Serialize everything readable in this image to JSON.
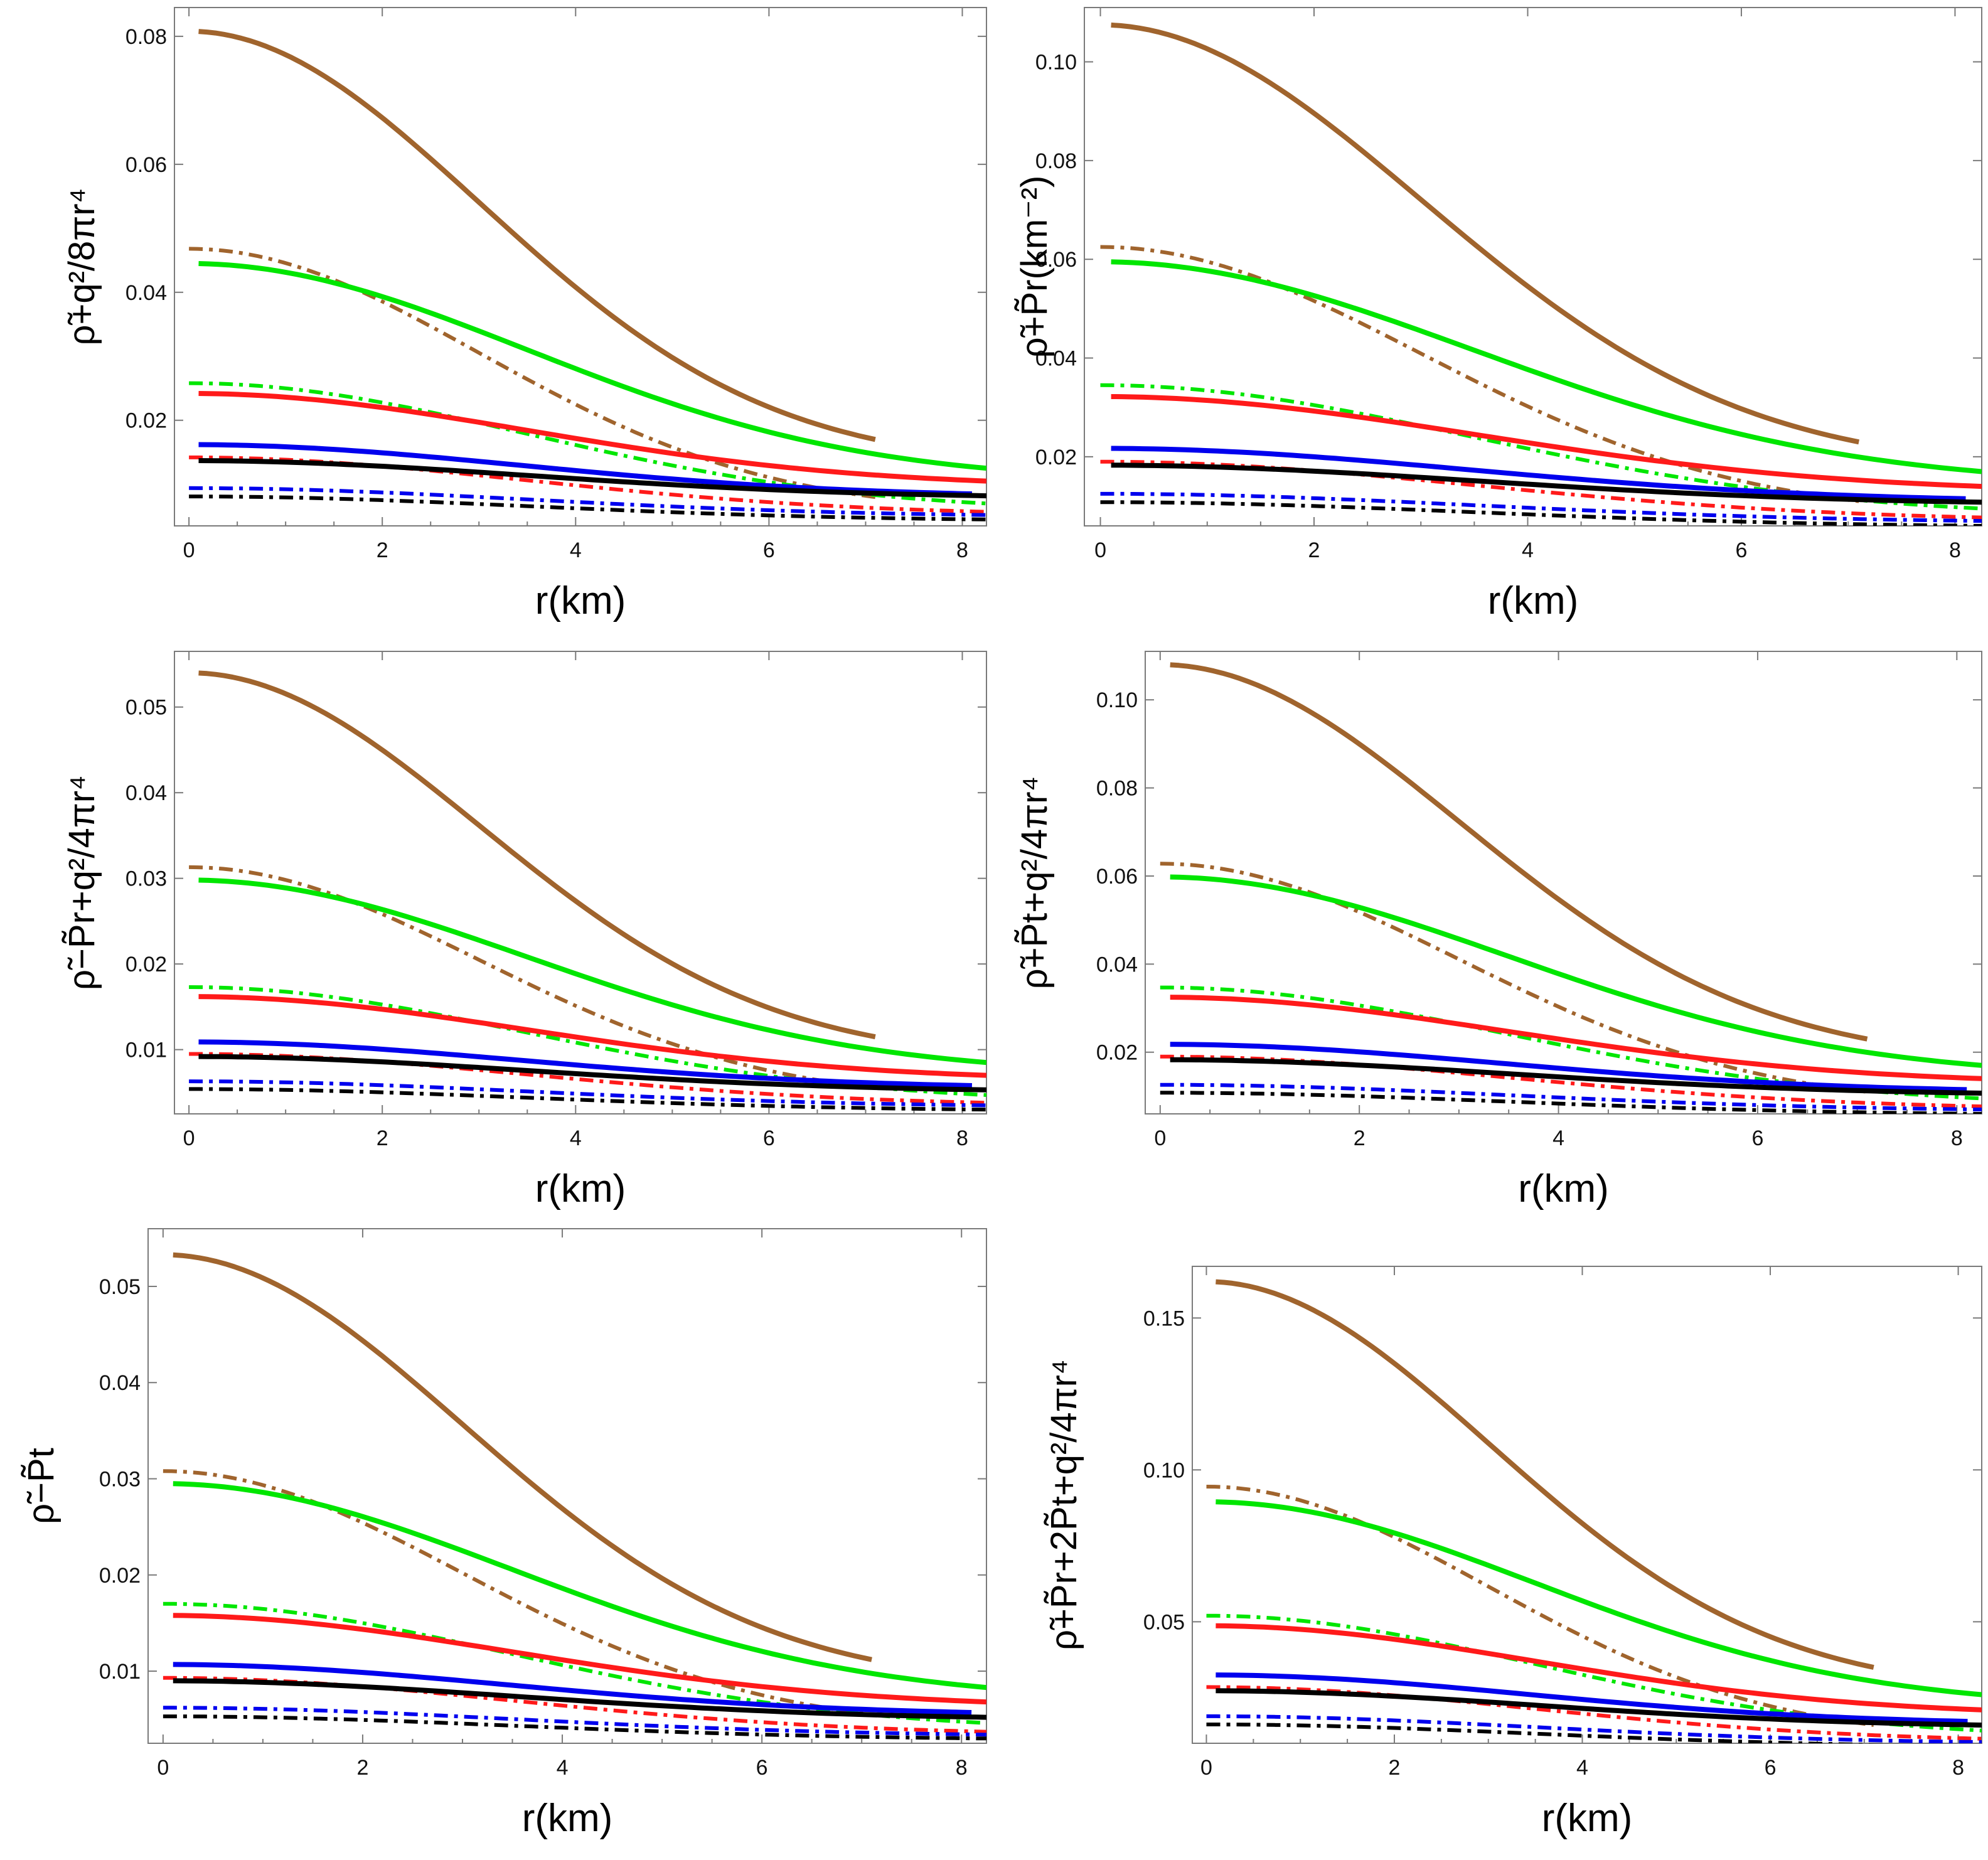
{
  "colors": {
    "brown": "#a0642d",
    "green": "#00e600",
    "red": "#ff1a1a",
    "blue": "#0000ee",
    "black": "#000000"
  },
  "chart_data": [
    {
      "type": "line",
      "ylabel": "ρ̃+q²/8πr⁴",
      "xlabel": "r(km)",
      "xlim": [
        -0.15,
        8.25
      ],
      "ylim": [
        0.0035,
        0.0845
      ],
      "xticks": [
        "0",
        "2",
        "4",
        "6",
        "8"
      ],
      "yticks": [
        "0.02",
        "0.04",
        "0.06",
        "0.08"
      ],
      "series": [
        {
          "name": "brown solid",
          "color": "brown",
          "dash": "solid",
          "r_end": 7.1,
          "y0": 0.0808,
          "y_end": 0.017,
          "k": 0.055
        },
        {
          "name": "green solid",
          "color": "green",
          "dash": "solid",
          "r_end": 8.25,
          "y0": 0.0445,
          "y_end": 0.0125,
          "k": 0.032
        },
        {
          "name": "red solid",
          "color": "red",
          "dash": "solid",
          "r_end": 8.25,
          "y0": 0.0242,
          "y_end": 0.0105,
          "k": 0.018
        },
        {
          "name": "blue solid",
          "color": "blue",
          "dash": "solid",
          "r_end": 8.1,
          "y0": 0.0162,
          "y_end": 0.0085,
          "k": 0.013
        },
        {
          "name": "black solid",
          "color": "black",
          "dash": "solid",
          "r_end": 8.25,
          "y0": 0.0137,
          "y_end": 0.0082,
          "k": 0.01
        },
        {
          "name": "brown dot-dashed",
          "color": "brown",
          "dash": "dotdash",
          "r_end": 7.1,
          "y0": 0.0468,
          "y_end": 0.008,
          "k": 0.07
        },
        {
          "name": "green dot-dashed",
          "color": "green",
          "dash": "dotdash",
          "r_end": 8.25,
          "y0": 0.0258,
          "y_end": 0.007,
          "k": 0.045
        },
        {
          "name": "red dot-dashed",
          "color": "red",
          "dash": "dotdash",
          "r_end": 8.25,
          "y0": 0.0142,
          "y_end": 0.0057,
          "k": 0.025
        },
        {
          "name": "blue dot-dashed",
          "color": "blue",
          "dash": "dotdash",
          "r_end": 8.25,
          "y0": 0.0094,
          "y_end": 0.0052,
          "k": 0.02
        },
        {
          "name": "black dot-dashed",
          "color": "black",
          "dash": "dotdash",
          "r_end": 8.25,
          "y0": 0.0081,
          "y_end": 0.0045,
          "k": 0.02
        }
      ]
    },
    {
      "type": "line",
      "ylabel": "ρ̃+P̃r(km⁻²)",
      "xlabel": "r(km)",
      "xlim": [
        -0.15,
        8.25
      ],
      "ylim": [
        0.006,
        0.111
      ],
      "xticks": [
        "0",
        "2",
        "4",
        "6",
        "8"
      ],
      "yticks": [
        "0.02",
        "0.04",
        "0.06",
        "0.08",
        "0.10"
      ],
      "series": [
        {
          "name": "brown solid",
          "color": "brown",
          "dash": "solid",
          "r_end": 7.1,
          "y0": 0.1075,
          "y_end": 0.023,
          "k": 0.055
        },
        {
          "name": "green solid",
          "color": "green",
          "dash": "solid",
          "r_end": 8.25,
          "y0": 0.0595,
          "y_end": 0.017,
          "k": 0.032
        },
        {
          "name": "red solid",
          "color": "red",
          "dash": "solid",
          "r_end": 8.25,
          "y0": 0.0322,
          "y_end": 0.014,
          "k": 0.018
        },
        {
          "name": "blue solid",
          "color": "blue",
          "dash": "solid",
          "r_end": 8.1,
          "y0": 0.0217,
          "y_end": 0.0115,
          "k": 0.013
        },
        {
          "name": "black solid",
          "color": "black",
          "dash": "solid",
          "r_end": 8.25,
          "y0": 0.0183,
          "y_end": 0.0108,
          "k": 0.01
        },
        {
          "name": "brown dot-dashed",
          "color": "brown",
          "dash": "dotdash",
          "r_end": 7.1,
          "y0": 0.0625,
          "y_end": 0.011,
          "k": 0.07
        },
        {
          "name": "green dot-dashed",
          "color": "green",
          "dash": "dotdash",
          "r_end": 8.25,
          "y0": 0.0345,
          "y_end": 0.0095,
          "k": 0.045
        },
        {
          "name": "red dot-dashed",
          "color": "red",
          "dash": "dotdash",
          "r_end": 8.25,
          "y0": 0.019,
          "y_end": 0.0077,
          "k": 0.025
        },
        {
          "name": "blue dot-dashed",
          "color": "blue",
          "dash": "dotdash",
          "r_end": 8.25,
          "y0": 0.0125,
          "y_end": 0.007,
          "k": 0.02
        },
        {
          "name": "black dot-dashed",
          "color": "black",
          "dash": "dotdash",
          "r_end": 8.25,
          "y0": 0.0108,
          "y_end": 0.006,
          "k": 0.02
        }
      ]
    },
    {
      "type": "line",
      "ylabel": "ρ̃−P̃r+q²/4πr⁴",
      "xlabel": "r(km)",
      "xlim": [
        -0.15,
        8.25
      ],
      "ylim": [
        0.0025,
        0.0565
      ],
      "xticks": [
        "0",
        "2",
        "4",
        "6",
        "8"
      ],
      "yticks": [
        "0.01",
        "0.02",
        "0.03",
        "0.04",
        "0.05"
      ],
      "series": [
        {
          "name": "brown solid",
          "color": "brown",
          "dash": "solid",
          "r_end": 7.1,
          "y0": 0.054,
          "y_end": 0.0115,
          "k": 0.055
        },
        {
          "name": "green solid",
          "color": "green",
          "dash": "solid",
          "r_end": 8.25,
          "y0": 0.0298,
          "y_end": 0.0085,
          "k": 0.032
        },
        {
          "name": "red solid",
          "color": "red",
          "dash": "solid",
          "r_end": 8.25,
          "y0": 0.0162,
          "y_end": 0.007,
          "k": 0.018
        },
        {
          "name": "blue solid",
          "color": "blue",
          "dash": "solid",
          "r_end": 8.1,
          "y0": 0.0109,
          "y_end": 0.0058,
          "k": 0.013
        },
        {
          "name": "black solid",
          "color": "black",
          "dash": "solid",
          "r_end": 8.25,
          "y0": 0.0092,
          "y_end": 0.0053,
          "k": 0.01
        },
        {
          "name": "brown dot-dashed",
          "color": "brown",
          "dash": "dotdash",
          "r_end": 7.1,
          "y0": 0.0313,
          "y_end": 0.0055,
          "k": 0.07
        },
        {
          "name": "green dot-dashed",
          "color": "green",
          "dash": "dotdash",
          "r_end": 8.25,
          "y0": 0.0173,
          "y_end": 0.0047,
          "k": 0.045
        },
        {
          "name": "red dot-dashed",
          "color": "red",
          "dash": "dotdash",
          "r_end": 8.25,
          "y0": 0.0095,
          "y_end": 0.0038,
          "k": 0.025
        },
        {
          "name": "blue dot-dashed",
          "color": "blue",
          "dash": "dotdash",
          "r_end": 8.25,
          "y0": 0.0063,
          "y_end": 0.0035,
          "k": 0.02
        },
        {
          "name": "black dot-dashed",
          "color": "black",
          "dash": "dotdash",
          "r_end": 8.25,
          "y0": 0.0054,
          "y_end": 0.003,
          "k": 0.02
        }
      ]
    },
    {
      "type": "line",
      "ylabel": "ρ̃+P̃t+q²/4πr⁴",
      "xlabel": "r(km)",
      "xlim": [
        -0.15,
        8.25
      ],
      "ylim": [
        0.006,
        0.111
      ],
      "xticks": [
        "0",
        "2",
        "4",
        "6",
        "8"
      ],
      "yticks": [
        "0.02",
        "0.04",
        "0.06",
        "0.08",
        "0.10"
      ],
      "series": [
        {
          "name": "brown solid",
          "color": "brown",
          "dash": "solid",
          "r_end": 7.1,
          "y0": 0.108,
          "y_end": 0.023,
          "k": 0.055
        },
        {
          "name": "green solid",
          "color": "green",
          "dash": "solid",
          "r_end": 8.25,
          "y0": 0.0598,
          "y_end": 0.017,
          "k": 0.032
        },
        {
          "name": "red solid",
          "color": "red",
          "dash": "solid",
          "r_end": 8.25,
          "y0": 0.0325,
          "y_end": 0.014,
          "k": 0.018
        },
        {
          "name": "blue solid",
          "color": "blue",
          "dash": "solid",
          "r_end": 8.1,
          "y0": 0.0218,
          "y_end": 0.0115,
          "k": 0.013
        },
        {
          "name": "black solid",
          "color": "black",
          "dash": "solid",
          "r_end": 8.25,
          "y0": 0.0183,
          "y_end": 0.0107,
          "k": 0.01
        },
        {
          "name": "brown dot-dashed",
          "color": "brown",
          "dash": "dotdash",
          "r_end": 7.1,
          "y0": 0.0628,
          "y_end": 0.011,
          "k": 0.07
        },
        {
          "name": "green dot-dashed",
          "color": "green",
          "dash": "dotdash",
          "r_end": 8.25,
          "y0": 0.0347,
          "y_end": 0.0095,
          "k": 0.045
        },
        {
          "name": "red dot-dashed",
          "color": "red",
          "dash": "dotdash",
          "r_end": 8.25,
          "y0": 0.019,
          "y_end": 0.0077,
          "k": 0.025
        },
        {
          "name": "blue dot-dashed",
          "color": "blue",
          "dash": "dotdash",
          "r_end": 8.25,
          "y0": 0.0126,
          "y_end": 0.007,
          "k": 0.02
        },
        {
          "name": "black dot-dashed",
          "color": "black",
          "dash": "dotdash",
          "r_end": 8.25,
          "y0": 0.0108,
          "y_end": 0.006,
          "k": 0.02
        }
      ]
    },
    {
      "type": "line",
      "ylabel": "ρ̃−P̃t",
      "xlabel": "r(km)",
      "xlim": [
        -0.15,
        8.25
      ],
      "ylim": [
        0.0025,
        0.056
      ],
      "xticks": [
        "0",
        "2",
        "4",
        "6",
        "8"
      ],
      "yticks": [
        "0.01",
        "0.02",
        "0.03",
        "0.04",
        "0.05"
      ],
      "series": [
        {
          "name": "brown solid",
          "color": "brown",
          "dash": "solid",
          "r_end": 7.1,
          "y0": 0.0533,
          "y_end": 0.0112,
          "k": 0.055
        },
        {
          "name": "green solid",
          "color": "green",
          "dash": "solid",
          "r_end": 8.25,
          "y0": 0.0295,
          "y_end": 0.0083,
          "k": 0.032
        },
        {
          "name": "red solid",
          "color": "red",
          "dash": "solid",
          "r_end": 8.25,
          "y0": 0.0158,
          "y_end": 0.0068,
          "k": 0.018
        },
        {
          "name": "blue solid",
          "color": "blue",
          "dash": "solid",
          "r_end": 8.1,
          "y0": 0.0107,
          "y_end": 0.0057,
          "k": 0.013
        },
        {
          "name": "black solid",
          "color": "black",
          "dash": "solid",
          "r_end": 8.25,
          "y0": 0.009,
          "y_end": 0.0052,
          "k": 0.01
        },
        {
          "name": "brown dot-dashed",
          "color": "brown",
          "dash": "dotdash",
          "r_end": 7.1,
          "y0": 0.0308,
          "y_end": 0.0055,
          "k": 0.07
        },
        {
          "name": "green dot-dashed",
          "color": "green",
          "dash": "dotdash",
          "r_end": 8.25,
          "y0": 0.017,
          "y_end": 0.0046,
          "k": 0.045
        },
        {
          "name": "red dot-dashed",
          "color": "red",
          "dash": "dotdash",
          "r_end": 8.25,
          "y0": 0.0093,
          "y_end": 0.0037,
          "k": 0.025
        },
        {
          "name": "blue dot-dashed",
          "color": "blue",
          "dash": "dotdash",
          "r_end": 8.25,
          "y0": 0.0062,
          "y_end": 0.0034,
          "k": 0.02
        },
        {
          "name": "black dot-dashed",
          "color": "black",
          "dash": "dotdash",
          "r_end": 8.25,
          "y0": 0.0053,
          "y_end": 0.003,
          "k": 0.02
        }
      ]
    },
    {
      "type": "line",
      "ylabel": "ρ̃+P̃r+2P̃t+q²/4πr⁴",
      "xlabel": "r(km)",
      "xlim": [
        -0.15,
        8.25
      ],
      "ylim": [
        0.01,
        0.167
      ],
      "xticks": [
        "0",
        "2",
        "4",
        "6",
        "8"
      ],
      "yticks": [
        "0.05",
        "0.10",
        "0.15"
      ],
      "series": [
        {
          "name": "brown solid",
          "color": "brown",
          "dash": "solid",
          "r_end": 7.1,
          "y0": 0.162,
          "y_end": 0.035,
          "k": 0.055
        },
        {
          "name": "green solid",
          "color": "green",
          "dash": "solid",
          "r_end": 8.25,
          "y0": 0.0895,
          "y_end": 0.026,
          "k": 0.032
        },
        {
          "name": "red solid",
          "color": "red",
          "dash": "solid",
          "r_end": 8.25,
          "y0": 0.0487,
          "y_end": 0.021,
          "k": 0.018
        },
        {
          "name": "blue solid",
          "color": "blue",
          "dash": "solid",
          "r_end": 8.1,
          "y0": 0.0325,
          "y_end": 0.0172,
          "k": 0.013
        },
        {
          "name": "black solid",
          "color": "black",
          "dash": "solid",
          "r_end": 8.25,
          "y0": 0.0273,
          "y_end": 0.016,
          "k": 0.01
        },
        {
          "name": "brown dot-dashed",
          "color": "brown",
          "dash": "dotdash",
          "r_end": 7.1,
          "y0": 0.0945,
          "y_end": 0.016,
          "k": 0.07
        },
        {
          "name": "green dot-dashed",
          "color": "green",
          "dash": "dotdash",
          "r_end": 8.25,
          "y0": 0.052,
          "y_end": 0.0142,
          "k": 0.045
        },
        {
          "name": "red dot-dashed",
          "color": "red",
          "dash": "dotdash",
          "r_end": 8.25,
          "y0": 0.0285,
          "y_end": 0.0115,
          "k": 0.025
        },
        {
          "name": "blue dot-dashed",
          "color": "blue",
          "dash": "dotdash",
          "r_end": 8.25,
          "y0": 0.0189,
          "y_end": 0.0104,
          "k": 0.02
        },
        {
          "name": "black dot-dashed",
          "color": "black",
          "dash": "dotdash",
          "r_end": 8.25,
          "y0": 0.0162,
          "y_end": 0.009,
          "k": 0.02
        }
      ]
    }
  ]
}
